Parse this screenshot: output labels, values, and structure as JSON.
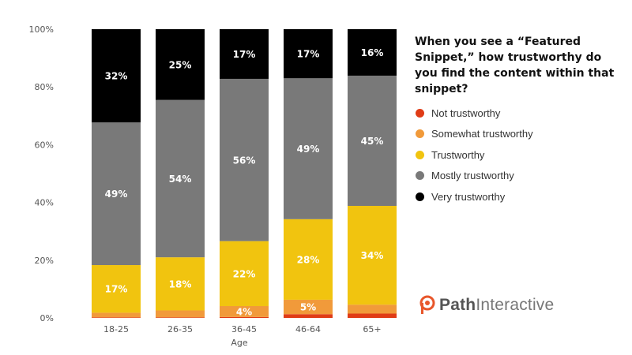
{
  "chart_data": {
    "type": "bar",
    "stacked": true,
    "categories": [
      "18-25",
      "26-35",
      "36-45",
      "46-64",
      "65+"
    ],
    "series": [
      {
        "name": "Not trustworthy",
        "color": "#e03c16",
        "values": [
          0.2,
          0.2,
          0.3,
          1.3,
          1.5
        ]
      },
      {
        "name": "Somewhat trustworthy",
        "color": "#f19a3a",
        "values": [
          1.6,
          2.4,
          3.8,
          5.0,
          3.1
        ]
      },
      {
        "name": "Trustworthy",
        "color": "#f1c40f",
        "values": [
          16.5,
          18.4,
          22.5,
          27.9,
          34.2
        ]
      },
      {
        "name": "Mostly trustworthy",
        "color": "#797979",
        "values": [
          49.4,
          54.5,
          56.2,
          48.8,
          45.1
        ]
      },
      {
        "name": "Very trustworthy",
        "color": "#000000",
        "values": [
          32.3,
          24.5,
          17.2,
          17.0,
          16.1
        ]
      }
    ],
    "labels": [
      [
        "",
        "",
        "",
        "",
        ""
      ],
      [
        "",
        "",
        "4%",
        "5%",
        ""
      ],
      [
        "17%",
        "18%",
        "22%",
        "28%",
        "34%"
      ],
      [
        "49%",
        "54%",
        "56%",
        "49%",
        "45%"
      ],
      [
        "32%",
        "25%",
        "17%",
        "17%",
        "16%"
      ]
    ],
    "yticks": [
      "0%",
      "20%",
      "40%",
      "60%",
      "80%",
      "100%"
    ],
    "ylim": [
      0,
      100
    ],
    "xlabel": "Age",
    "title": "When you see a “Featured Snippet,” how trustworthy do you find the content within that snippet?",
    "legend_position": "right"
  },
  "brand": {
    "path": "Path",
    "rest": "Interactive",
    "color": "#e8562a"
  }
}
